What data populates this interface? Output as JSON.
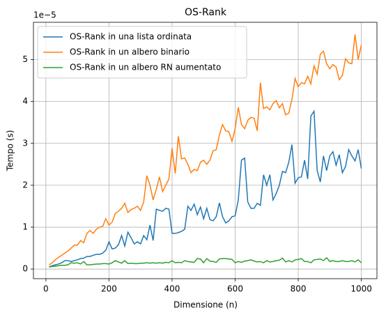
{
  "chart_data": {
    "type": "line",
    "title": "OS-Rank",
    "x_label": "Dimensione (n)",
    "y_label": "Tempo (s)",
    "y_offset_label": "1e−5",
    "x": [
      10,
      20,
      30,
      40,
      50,
      60,
      70,
      80,
      90,
      100,
      110,
      120,
      130,
      140,
      150,
      160,
      170,
      180,
      190,
      200,
      210,
      220,
      230,
      240,
      250,
      260,
      270,
      280,
      290,
      300,
      310,
      320,
      330,
      340,
      350,
      360,
      370,
      380,
      390,
      400,
      410,
      420,
      430,
      440,
      450,
      460,
      470,
      480,
      490,
      500,
      510,
      520,
      530,
      540,
      550,
      560,
      570,
      580,
      590,
      600,
      610,
      620,
      630,
      640,
      650,
      660,
      670,
      680,
      690,
      700,
      710,
      720,
      730,
      740,
      750,
      760,
      770,
      780,
      790,
      800,
      810,
      820,
      830,
      840,
      850,
      860,
      870,
      880,
      890,
      900,
      910,
      920,
      930,
      940,
      950,
      960,
      970,
      980,
      990,
      1000
    ],
    "series": [
      {
        "name": "OS-Rank in una lista ordinata",
        "color": "#1f77b4",
        "values": [
          0.05,
          0.08,
          0.1,
          0.12,
          0.15,
          0.2,
          0.2,
          0.18,
          0.2,
          0.22,
          0.25,
          0.26,
          0.3,
          0.3,
          0.33,
          0.35,
          0.35,
          0.38,
          0.45,
          0.65,
          0.48,
          0.5,
          0.58,
          0.8,
          0.55,
          0.88,
          0.75,
          0.6,
          0.65,
          0.6,
          0.8,
          0.7,
          1.05,
          0.68,
          1.43,
          1.4,
          1.38,
          1.45,
          1.43,
          0.85,
          0.85,
          0.87,
          0.9,
          0.95,
          1.5,
          1.4,
          1.55,
          1.3,
          1.48,
          1.2,
          1.45,
          1.18,
          1.15,
          1.25,
          1.58,
          1.25,
          1.1,
          1.15,
          1.25,
          1.27,
          1.65,
          2.6,
          2.65,
          1.6,
          1.45,
          1.45,
          1.57,
          1.52,
          2.25,
          2.0,
          2.25,
          1.65,
          1.8,
          2.0,
          2.33,
          2.3,
          2.55,
          2.97,
          2.05,
          2.18,
          2.2,
          2.6,
          2.15,
          3.65,
          3.77,
          2.35,
          2.08,
          2.7,
          2.35,
          2.7,
          2.8,
          2.48,
          2.73,
          2.3,
          2.45,
          2.85,
          2.7,
          2.58,
          2.85,
          2.4
        ]
      },
      {
        "name": "OS-Rank in un albero binario",
        "color": "#ff7f0e",
        "values": [
          0.1,
          0.15,
          0.22,
          0.28,
          0.33,
          0.38,
          0.43,
          0.5,
          0.57,
          0.57,
          0.68,
          0.63,
          0.85,
          0.92,
          0.85,
          0.95,
          1.0,
          1.02,
          1.2,
          1.05,
          1.12,
          1.33,
          1.38,
          1.45,
          1.57,
          1.35,
          1.42,
          1.45,
          1.5,
          1.4,
          1.6,
          2.23,
          2.0,
          1.65,
          1.9,
          2.2,
          1.85,
          2.0,
          2.15,
          2.88,
          2.28,
          3.17,
          2.63,
          2.65,
          2.5,
          2.3,
          2.38,
          2.35,
          2.55,
          2.6,
          2.5,
          2.6,
          2.82,
          2.85,
          3.2,
          3.45,
          3.3,
          3.28,
          3.05,
          3.35,
          3.86,
          3.45,
          3.35,
          3.55,
          3.62,
          3.6,
          3.3,
          4.45,
          3.83,
          3.87,
          3.8,
          3.95,
          4.02,
          3.85,
          3.95,
          3.68,
          3.72,
          4.05,
          4.55,
          4.35,
          4.45,
          4.42,
          4.6,
          4.42,
          4.85,
          4.65,
          5.13,
          5.2,
          4.9,
          4.78,
          4.88,
          4.82,
          4.52,
          4.62,
          5.02,
          4.92,
          4.9,
          5.6,
          5.0,
          5.35
        ]
      },
      {
        "name": "OS-Rank in un albero RN aumentato",
        "color": "#2ca02c",
        "values": [
          0.05,
          0.06,
          0.07,
          0.08,
          0.09,
          0.09,
          0.1,
          0.15,
          0.14,
          0.15,
          0.12,
          0.18,
          0.1,
          0.1,
          0.11,
          0.12,
          0.12,
          0.13,
          0.13,
          0.12,
          0.15,
          0.2,
          0.17,
          0.14,
          0.2,
          0.13,
          0.14,
          0.13,
          0.13,
          0.14,
          0.14,
          0.15,
          0.14,
          0.15,
          0.14,
          0.15,
          0.14,
          0.16,
          0.15,
          0.2,
          0.15,
          0.16,
          0.15,
          0.2,
          0.18,
          0.17,
          0.16,
          0.25,
          0.24,
          0.15,
          0.25,
          0.19,
          0.18,
          0.16,
          0.24,
          0.25,
          0.25,
          0.24,
          0.23,
          0.15,
          0.18,
          0.16,
          0.19,
          0.2,
          0.22,
          0.19,
          0.17,
          0.18,
          0.15,
          0.2,
          0.17,
          0.18,
          0.2,
          0.21,
          0.26,
          0.17,
          0.2,
          0.17,
          0.22,
          0.23,
          0.25,
          0.18,
          0.18,
          0.15,
          0.22,
          0.23,
          0.24,
          0.2,
          0.27,
          0.18,
          0.2,
          0.18,
          0.18,
          0.2,
          0.18,
          0.18,
          0.2,
          0.17,
          0.22,
          0.15
        ]
      }
    ],
    "xlim": [
      -39.5,
      1049.5
    ],
    "ylim": [
      -0.23,
      5.89
    ],
    "xticks": [
      0,
      200,
      400,
      600,
      800,
      1000
    ],
    "yticks": [
      0,
      1,
      2,
      3,
      4,
      5
    ],
    "grid": true,
    "legend": "upper left"
  }
}
